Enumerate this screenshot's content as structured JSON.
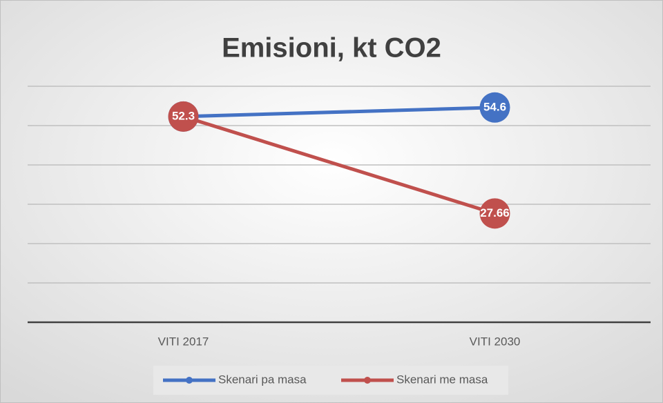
{
  "chart_data": {
    "type": "line",
    "title": "Emisioni, kt CO2",
    "categories": [
      "VITI 2017",
      "VITI 2030"
    ],
    "series": [
      {
        "name": "Skenari pa masa",
        "color": "#4472c4",
        "values": [
          52.3,
          54.6
        ]
      },
      {
        "name": "Skenari me masa",
        "color": "#c0504d",
        "values": [
          52.3,
          27.66
        ]
      }
    ],
    "ylim": [
      0,
      60
    ],
    "yticks": [
      0,
      10,
      20,
      30,
      40,
      50,
      60
    ],
    "grid": true,
    "legend": "bottom"
  }
}
